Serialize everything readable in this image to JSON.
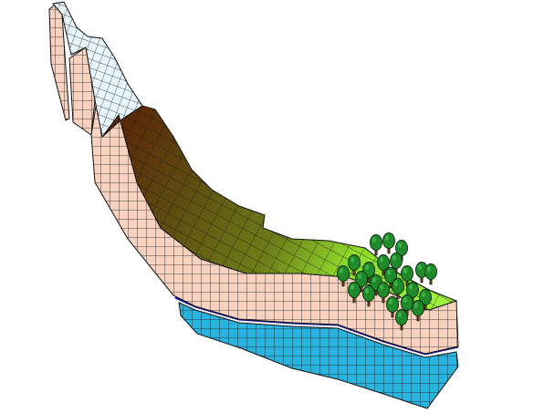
{
  "figure": {
    "subject": "block-diagram-of-valley-cross-section",
    "colors": {
      "background": "#ffffff",
      "snow": "#e8f6ff",
      "rock_dark": "#5a2508",
      "rock_mid": "#5e4a10",
      "hillside": "#6e7e18",
      "meadow": "#8fd92a",
      "meadow_light": "#9cf33a",
      "soil": "#f8d2be",
      "groundwater": "#27b4e0",
      "water_line": "#1a1aa0",
      "grid": "#1a1a1a",
      "tree_crown": "#1f8a2a",
      "tree_trunk": "#5a3a1a"
    },
    "layers": [
      {
        "name": "snow-cap"
      },
      {
        "name": "bedrock-slope"
      },
      {
        "name": "vegetated-slope"
      },
      {
        "name": "meadow-floodplain"
      },
      {
        "name": "soil-unsaturated-zone"
      },
      {
        "name": "groundwater-saturated-zone"
      }
    ],
    "tree_count": 24
  }
}
